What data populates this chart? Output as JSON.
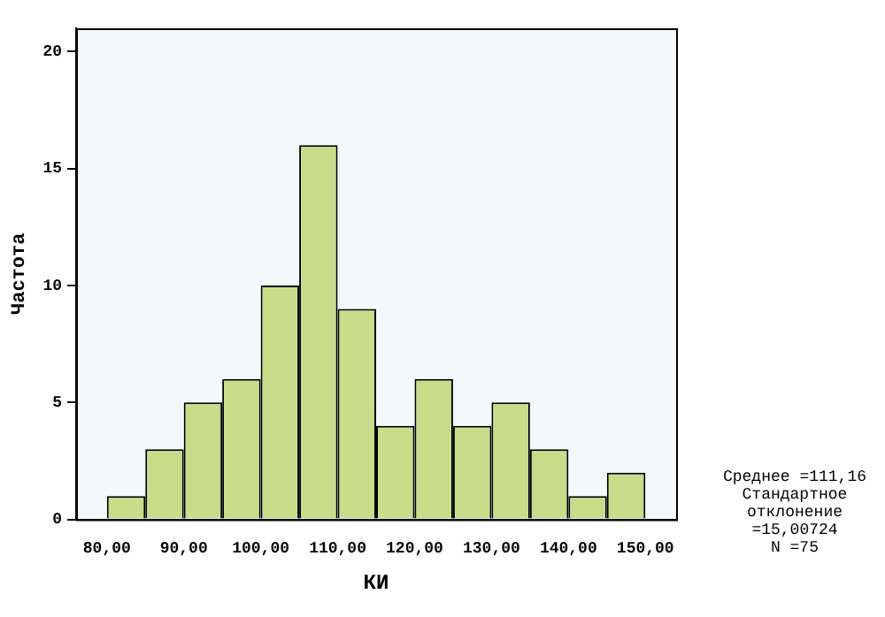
{
  "chart_data": {
    "type": "histogram",
    "xlabel": "КИ",
    "ylabel": "Частота",
    "bins": [
      80,
      85,
      90,
      95,
      100,
      105,
      110,
      115,
      120,
      125,
      130,
      135,
      140,
      145,
      150
    ],
    "values": [
      1,
      3,
      5,
      6,
      10,
      16,
      9,
      4,
      6,
      4,
      5,
      3,
      1,
      2
    ],
    "color": "#c9dc8a",
    "xlim": [
      76,
      154
    ],
    "xticks": [
      {
        "value": 80,
        "label": "80,00"
      },
      {
        "value": 90,
        "label": "90,00"
      },
      {
        "value": 100,
        "label": "100,00"
      },
      {
        "value": 110,
        "label": "110,00"
      },
      {
        "value": 120,
        "label": "120,00"
      },
      {
        "value": 130,
        "label": "130,00"
      },
      {
        "value": 140,
        "label": "140,00"
      },
      {
        "value": 150,
        "label": "150,00"
      }
    ],
    "ylim": [
      0,
      21
    ],
    "yticks": [
      0,
      5,
      10,
      15,
      20
    ],
    "grid": false,
    "legend": false,
    "annotations": [
      "Среднее =111,16",
      "Стандартное отклонение =15,00724",
      "N =75"
    ]
  }
}
